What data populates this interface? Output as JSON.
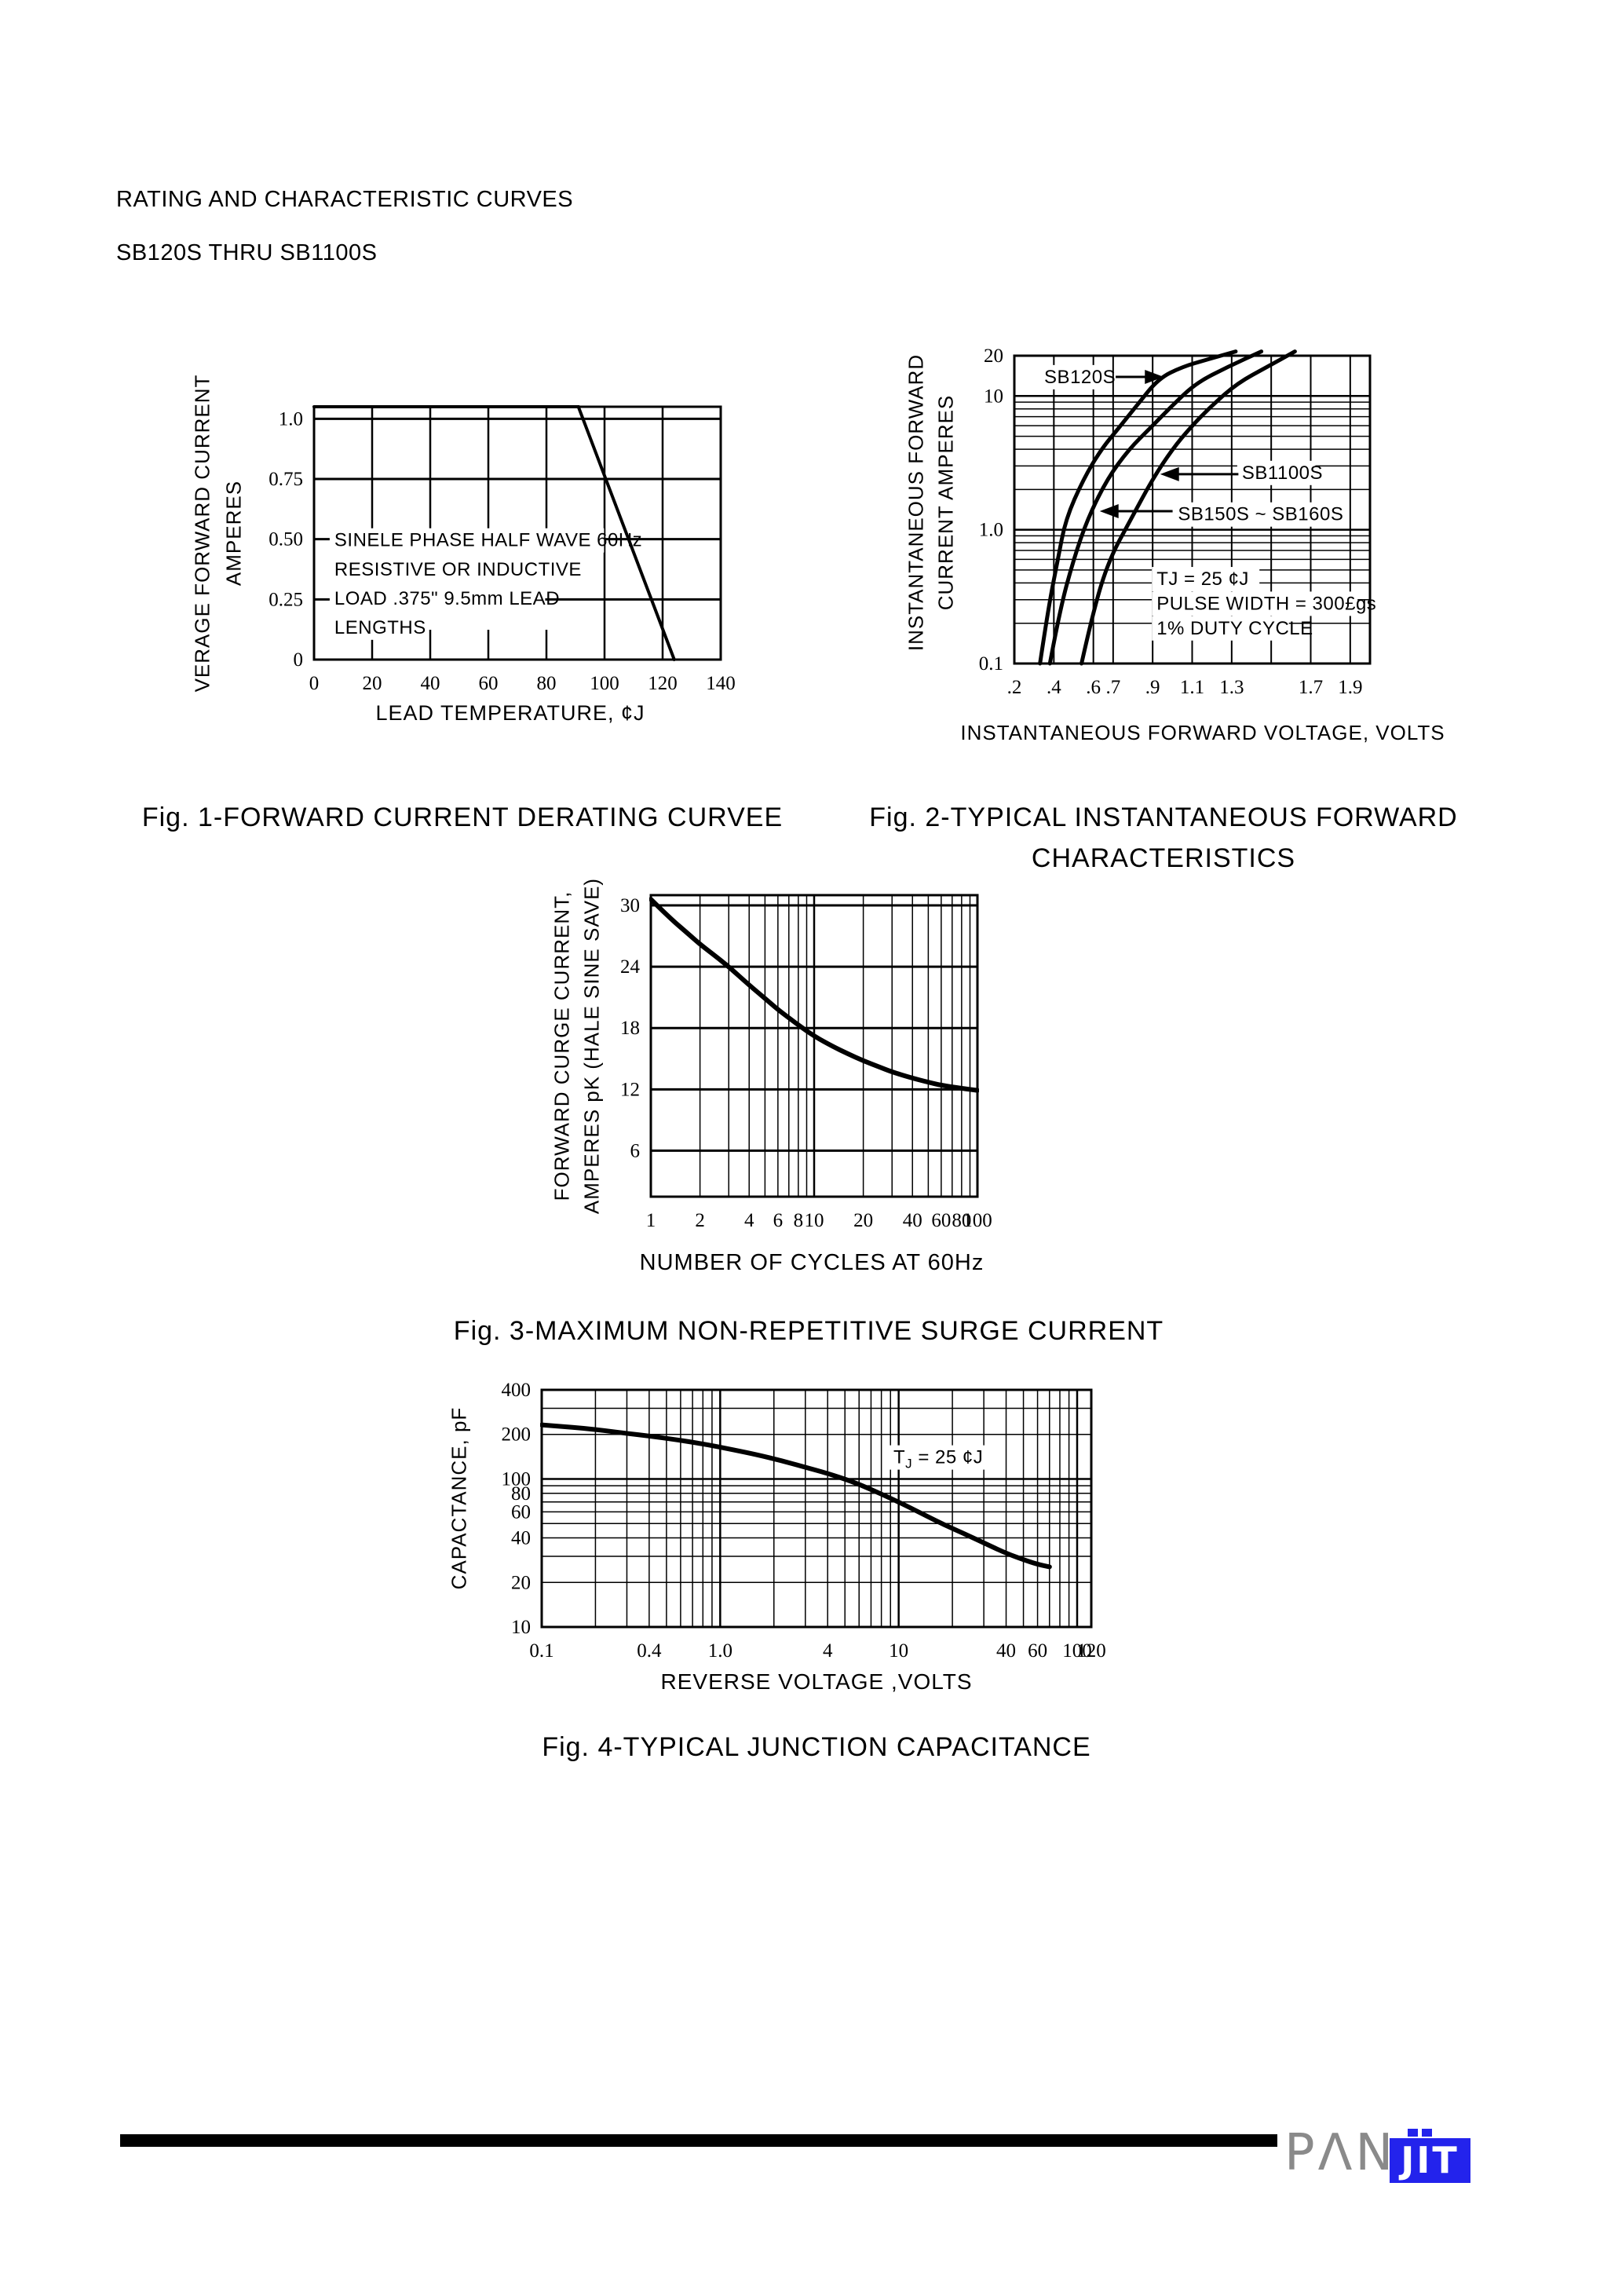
{
  "page": {
    "title_line1": "RATING AND CHARACTERISTIC CURVES",
    "title_line2": "SB120S THRU SB1100S"
  },
  "footer": {
    "brand_gray": "PΛN",
    "brand_blue": "JIT"
  },
  "colors": {
    "brand_blue": "#2323ec",
    "brand_gray": "#8a8a8a",
    "ink": "#000000",
    "paper": "#ffffff"
  },
  "chart_data": [
    {
      "id": "fig1",
      "type": "line",
      "caption": "Fig. 1-FORWARD CURRENT DERATING CURVEE",
      "xlabel": "LEAD TEMPERATURE, ¢J",
      "ylabel1": "VERAGE FORWARD CURRENT",
      "ylabel2": "AMPERES",
      "x": {
        "type": "linear",
        "min": 0,
        "max": 140
      },
      "y": {
        "type": "linear",
        "min": 0,
        "max": 1.05
      },
      "grid": "on",
      "xgrid": [
        100,
        120
      ],
      "xgrid_partial": {
        "values": [
          20,
          40,
          60,
          80
        ],
        "top_frac": 0.57,
        "stub": 38
      },
      "ygrid": [
        0.25,
        0.5,
        0.75,
        1.0
      ],
      "xticks": [
        {
          "v": 0,
          "label": "0"
        },
        {
          "v": 20,
          "label": "20"
        },
        {
          "v": 40,
          "label": "40"
        },
        {
          "v": 60,
          "label": "60"
        },
        {
          "v": 80,
          "label": "80"
        },
        {
          "v": 100,
          "label": "100"
        },
        {
          "v": 120,
          "label": "120"
        },
        {
          "v": 140,
          "label": "140"
        }
      ],
      "yticks": [
        {
          "v": 1.0,
          "label": "1.0"
        },
        {
          "v": 0.75,
          "label": "0.75"
        },
        {
          "v": 0.5,
          "label": "0.50"
        },
        {
          "v": 0.25,
          "label": "0.25"
        },
        {
          "v": 0,
          "label": "0"
        }
      ],
      "series": [
        {
          "name": "average forward current",
          "sharp": true,
          "points": [
            [
              0,
              1.05
            ],
            [
              91,
              1.05
            ],
            [
              124,
              0
            ]
          ]
        }
      ],
      "annotations": [
        {
          "fx": 0.05,
          "fy": 0.552,
          "text": "SINELE PHASE HALF WAVE 60Hz",
          "bg": true
        },
        {
          "fx": 0.05,
          "fy": 0.667,
          "text": "RESISTIVE OR INDUCTIVE",
          "bg": true
        },
        {
          "fx": 0.05,
          "fy": 0.782,
          "text": "LOAD .375\" 9.5mm LEAD",
          "bg": true
        },
        {
          "fx": 0.05,
          "fy": 0.897,
          "text": "LENGTHS",
          "bg": true
        }
      ],
      "arrows": [],
      "style": {
        "xw": 2.5,
        "yw": 3,
        "curve": 4
      }
    },
    {
      "id": "fig2",
      "type": "line",
      "caption": "Fig. 2-TYPICAL INSTANTANEOUS FORWARD",
      "caption2": "CHARACTERISTICS",
      "xlabel": "INSTANTANEOUS FORWARD VOLTAGE, VOLTS",
      "ylabel1": "INSTANTANEOUS FORWARD",
      "ylabel2": "CURRENT AMPERES",
      "x": {
        "type": "linear",
        "min": 0.2,
        "max": 2.0
      },
      "y": {
        "type": "log",
        "min": 0.1,
        "max": 20
      },
      "grid": "on",
      "xgrid": [
        0.4,
        0.6,
        0.7,
        0.9,
        1.1,
        1.3,
        1.5,
        1.7,
        1.9
      ],
      "ygrid": [
        0.2,
        0.3,
        0.4,
        0.5,
        0.6,
        0.7,
        0.8,
        0.9,
        2,
        3,
        4,
        5,
        6,
        7,
        8,
        9
      ],
      "ygrid_bold": [
        1,
        10
      ],
      "xticks": [
        {
          "v": 0.2,
          "label": ".2"
        },
        {
          "v": 0.4,
          "label": ".4"
        },
        {
          "v": 0.6,
          "label": ".6"
        },
        {
          "v": 0.7,
          "label": ".7"
        },
        {
          "v": 0.9,
          "label": ".9"
        },
        {
          "v": 1.1,
          "label": "1.1"
        },
        {
          "v": 1.3,
          "label": "1.3"
        },
        {
          "v": 1.7,
          "label": "1.7"
        },
        {
          "v": 1.9,
          "label": "1.9"
        }
      ],
      "yticks": [
        {
          "v": 20,
          "label": "20"
        },
        {
          "v": 10,
          "label": "10"
        },
        {
          "v": 1,
          "label": "1.0"
        },
        {
          "v": 0.1,
          "label": "0.1"
        }
      ],
      "series": [
        {
          "name": "SB120S",
          "points": [
            [
              0.33,
              0.1
            ],
            [
              0.37,
              0.25
            ],
            [
              0.42,
              0.6
            ],
            [
              0.46,
              1.2
            ],
            [
              0.55,
              2.4
            ],
            [
              0.64,
              4
            ],
            [
              0.73,
              5.8
            ],
            [
              0.82,
              8.5
            ],
            [
              0.93,
              13.5
            ],
            [
              1.05,
              16.5
            ],
            [
              1.18,
              18.8
            ],
            [
              1.32,
              21.5
            ]
          ]
        },
        {
          "name": "SB150S ~ SB160S",
          "points": [
            [
              0.38,
              0.1
            ],
            [
              0.43,
              0.25
            ],
            [
              0.5,
              0.6
            ],
            [
              0.57,
              1.2
            ],
            [
              0.67,
              2.4
            ],
            [
              0.78,
              4
            ],
            [
              0.89,
              5.8
            ],
            [
              1.0,
              8.5
            ],
            [
              1.12,
              12.5
            ],
            [
              1.28,
              16.5
            ],
            [
              1.45,
              21.5
            ]
          ]
        },
        {
          "name": "SB1100S",
          "points": [
            [
              0.54,
              0.1
            ],
            [
              0.6,
              0.25
            ],
            [
              0.68,
              0.6
            ],
            [
              0.79,
              1.2
            ],
            [
              0.9,
              2.4
            ],
            [
              1.0,
              4
            ],
            [
              1.09,
              5.8
            ],
            [
              1.2,
              8.5
            ],
            [
              1.33,
              12.5
            ],
            [
              1.48,
              16.5
            ],
            [
              1.62,
              21.5
            ]
          ]
        }
      ],
      "annotations": [
        {
          "fx": 0.084,
          "fy": 0.089,
          "text": "SB120S",
          "bg": true
        },
        {
          "fx": 0.64,
          "fy": 0.4,
          "text": "SB1100S",
          "bg": true
        },
        {
          "fx": 0.46,
          "fy": 0.535,
          "text": "SB150S ~ SB160S",
          "bg": true
        },
        {
          "fx": 0.4,
          "fy": 0.745,
          "text": "TJ = 25 ¢J",
          "bg": true
        },
        {
          "fx": 0.4,
          "fy": 0.825,
          "text": "PULSE WIDTH = 300£gs",
          "bg": true
        },
        {
          "fx": 0.4,
          "fy": 0.905,
          "text": "1% DUTY CYCLE",
          "bg": true
        }
      ],
      "arrows": [
        {
          "fx1": 0.285,
          "fy1": 0.069,
          "fx2": 0.42,
          "fy2": 0.069
        },
        {
          "fx1": 0.63,
          "fy1": 0.385,
          "fx2": 0.41,
          "fy2": 0.385
        },
        {
          "fx1": 0.445,
          "fy1": 0.505,
          "fx2": 0.24,
          "fy2": 0.505
        }
      ],
      "style": {
        "xw": 2,
        "yw": 1.5,
        "ybw": 2.5,
        "curve": 5
      }
    },
    {
      "id": "fig3",
      "type": "line",
      "caption": "Fig. 3-MAXIMUM NON-REPETITIVE SURGE CURRENT",
      "xlabel": "NUMBER OF CYCLES AT 60Hz",
      "ylabel1": "FORWARD CURGE CURRENT,",
      "ylabel2": "AMPERES pK (HALE SINE SAVE)",
      "x": {
        "type": "log",
        "min": 1,
        "max": 100
      },
      "y": {
        "type": "linear",
        "min": 1.5,
        "max": 31
      },
      "grid": "on",
      "xgrid": [
        2,
        3,
        4,
        5,
        6,
        7,
        8,
        9,
        20,
        30,
        40,
        50,
        60,
        70,
        80,
        90
      ],
      "xgrid_bold": [
        10
      ],
      "ygrid": [
        6,
        12,
        18,
        24,
        30
      ],
      "xticks": [
        {
          "v": 1,
          "label": "1"
        },
        {
          "v": 2,
          "label": "2"
        },
        {
          "v": 4,
          "label": "4"
        },
        {
          "v": 6,
          "label": "6"
        },
        {
          "v": 8,
          "label": "8"
        },
        {
          "v": 10,
          "label": "10"
        },
        {
          "v": 20,
          "label": "20"
        },
        {
          "v": 40,
          "label": "40"
        },
        {
          "v": 60,
          "label": "60"
        },
        {
          "v": 80,
          "label": "80"
        },
        {
          "v": 100,
          "label": "100"
        }
      ],
      "yticks": [
        {
          "v": 30,
          "label": "30"
        },
        {
          "v": 24,
          "label": "24"
        },
        {
          "v": 18,
          "label": "18"
        },
        {
          "v": 12,
          "label": "12"
        },
        {
          "v": 6,
          "label": "6"
        }
      ],
      "series": [
        {
          "name": "surge current",
          "points": [
            [
              1,
              30.6
            ],
            [
              1.3,
              28.8
            ],
            [
              1.7,
              27.2
            ],
            [
              2,
              26.2
            ],
            [
              2.5,
              25
            ],
            [
              3,
              24
            ],
            [
              4,
              22.2
            ],
            [
              5,
              20.9
            ],
            [
              6,
              19.8
            ],
            [
              7,
              19
            ],
            [
              8,
              18.3
            ],
            [
              10,
              17.2
            ],
            [
              13,
              16.2
            ],
            [
              16,
              15.5
            ],
            [
              20,
              14.8
            ],
            [
              25,
              14.2
            ],
            [
              30,
              13.7
            ],
            [
              40,
              13.1
            ],
            [
              50,
              12.7
            ],
            [
              60,
              12.4
            ],
            [
              80,
              12.1
            ],
            [
              100,
              11.9
            ]
          ]
        }
      ],
      "annotations": [],
      "arrows": [],
      "style": {
        "xw": 1.5,
        "xbw": 2.5,
        "yw": 3,
        "curve": 6
      }
    },
    {
      "id": "fig4",
      "type": "line",
      "caption": "Fig. 4-TYPICAL JUNCTION CAPACITANCE",
      "xlabel": "REVERSE VOLTAGE ,VOLTS",
      "ylabel1": "CAPACTANCE, pF",
      "x": {
        "type": "log",
        "min": 0.1,
        "max": 120
      },
      "y": {
        "type": "log",
        "min": 10,
        "max": 400
      },
      "grid": "on",
      "xgrid": [
        0.2,
        0.3,
        0.4,
        0.5,
        0.6,
        0.7,
        0.8,
        0.9,
        2,
        3,
        4,
        5,
        6,
        7,
        8,
        9,
        20,
        30,
        40,
        50,
        60,
        70,
        80,
        90
      ],
      "xgrid_bold": [
        1,
        10,
        100
      ],
      "ygrid": [
        20,
        30,
        40,
        50,
        60,
        70,
        80,
        90,
        200,
        300
      ],
      "ygrid_bold": [
        100
      ],
      "xticks": [
        {
          "v": 0.1,
          "label": "0.1"
        },
        {
          "v": 0.4,
          "label": "0.4"
        },
        {
          "v": 1,
          "label": "1.0"
        },
        {
          "v": 4,
          "label": "4"
        },
        {
          "v": 10,
          "label": "10"
        },
        {
          "v": 40,
          "label": "40"
        },
        {
          "v": 60,
          "label": "60"
        },
        {
          "v": 100,
          "label": "100"
        },
        {
          "v": 120,
          "label": "120"
        }
      ],
      "yticks": [
        {
          "v": 400,
          "label": "400"
        },
        {
          "v": 200,
          "label": "200"
        },
        {
          "v": 100,
          "label": "100"
        },
        {
          "v": 80,
          "label": "80"
        },
        {
          "v": 60,
          "label": "60"
        },
        {
          "v": 40,
          "label": "40"
        },
        {
          "v": 20,
          "label": "20"
        },
        {
          "v": 10,
          "label": "10"
        }
      ],
      "series": [
        {
          "name": "junction capacitance",
          "points": [
            [
              0.1,
              232
            ],
            [
              0.13,
              226
            ],
            [
              0.17,
              220
            ],
            [
              0.22,
              213
            ],
            [
              0.3,
              203
            ],
            [
              0.4,
              195
            ],
            [
              0.55,
              185
            ],
            [
              0.7,
              177
            ],
            [
              0.9,
              168
            ],
            [
              1.2,
              157
            ],
            [
              1.6,
              146
            ],
            [
              2.2,
              133
            ],
            [
              3,
              120
            ],
            [
              4,
              109
            ],
            [
              5.5,
              96
            ],
            [
              7,
              85
            ],
            [
              9,
              74
            ],
            [
              11,
              66
            ],
            [
              14,
              57
            ],
            [
              18,
              49
            ],
            [
              23,
              43
            ],
            [
              30,
              37
            ],
            [
              40,
              31.5
            ],
            [
              50,
              28.5
            ],
            [
              60,
              26.5
            ],
            [
              70,
              25.5
            ]
          ]
        }
      ],
      "annotations": [
        {
          "fx": 0.64,
          "fy": 0.31,
          "parts": [
            {
              "t": "T"
            },
            {
              "t": "J",
              "sub": true
            },
            {
              "t": " = 25 ¢J"
            }
          ],
          "bg": true
        }
      ],
      "arrows": [],
      "style": {
        "xw": 1.5,
        "xbw": 2.5,
        "yw": 1.5,
        "ybw": 2.5,
        "curve": 6
      }
    }
  ]
}
